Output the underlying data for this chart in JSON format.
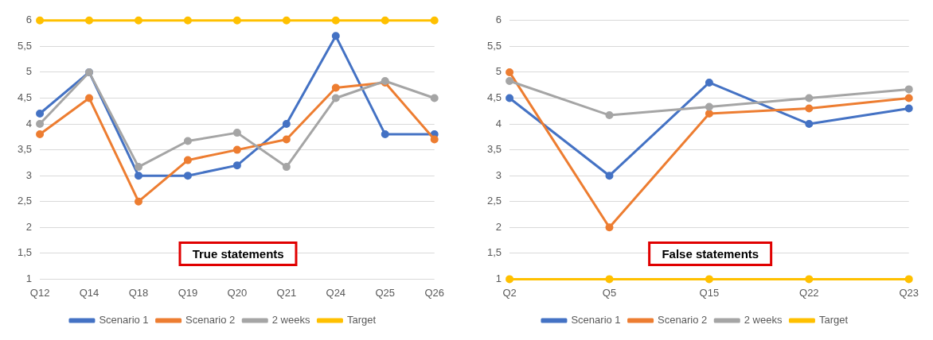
{
  "chart_data": [
    {
      "type": "line",
      "categories": [
        "Q12",
        "Q14",
        "Q18",
        "Q19",
        "Q20",
        "Q21",
        "Q24",
        "Q25",
        "Q26"
      ],
      "series": [
        {
          "name": "Scenario 1",
          "color": "#4472c4",
          "values": [
            4.2,
            5,
            3,
            3,
            3.2,
            4,
            5.7,
            3.8,
            3.8
          ]
        },
        {
          "name": "Scenario 2",
          "color": "#ed7d31",
          "values": [
            3.8,
            4.5,
            2.5,
            3.3,
            3.5,
            3.7,
            4.7,
            4.8,
            3.7
          ]
        },
        {
          "name": "2 weeks",
          "color": "#a5a5a5",
          "values": [
            4,
            5,
            3.17,
            3.67,
            3.83,
            3.17,
            4.5,
            4.83,
            4.5
          ]
        },
        {
          "name": "Target",
          "color": "#ffc000",
          "values": [
            6,
            6,
            6,
            6,
            6,
            6,
            6,
            6,
            6
          ]
        }
      ],
      "ylim": [
        1,
        6
      ],
      "yticks": [
        1,
        {
          "value": 1.5,
          "label": "1,5"
        },
        2,
        {
          "value": 2.5,
          "label": "2,5"
        },
        3,
        {
          "value": 3.5,
          "label": "3,5"
        },
        4,
        {
          "value": 4.5,
          "label": "4,5"
        },
        5,
        {
          "value": 5.5,
          "label": "5,5"
        },
        6
      ],
      "annotations": [
        "True statements"
      ],
      "grid": "y",
      "legend": "bottom",
      "marker": "circle",
      "line_style": "solid"
    },
    {
      "type": "line",
      "categories": [
        "Q2",
        "Q5",
        "Q15",
        "Q22",
        "Q23"
      ],
      "series": [
        {
          "name": "Scenario 1",
          "color": "#4472c4",
          "values": [
            4.5,
            3,
            4.8,
            4,
            4.3
          ]
        },
        {
          "name": "Scenario 2",
          "color": "#ed7d31",
          "values": [
            5,
            2,
            4.2,
            4.3,
            4.5
          ]
        },
        {
          "name": "2 weeks",
          "color": "#a5a5a5",
          "values": [
            4.83,
            4.17,
            4.33,
            4.5,
            4.67
          ]
        },
        {
          "name": "Target",
          "color": "#ffc000",
          "values": [
            1,
            1,
            1,
            1,
            1
          ]
        }
      ],
      "ylim": [
        1,
        6
      ],
      "yticks": [
        1,
        {
          "value": 1.5,
          "label": "1,5"
        },
        2,
        {
          "value": 2.5,
          "label": "2,5"
        },
        3,
        {
          "value": 3.5,
          "label": "3,5"
        },
        4,
        {
          "value": 4.5,
          "label": "4,5"
        },
        5,
        {
          "value": 5.5,
          "label": "5,5"
        },
        6
      ],
      "annotations": [
        "False statements"
      ],
      "grid": "y",
      "legend": "bottom",
      "marker": "circle",
      "line_style": "solid"
    }
  ]
}
